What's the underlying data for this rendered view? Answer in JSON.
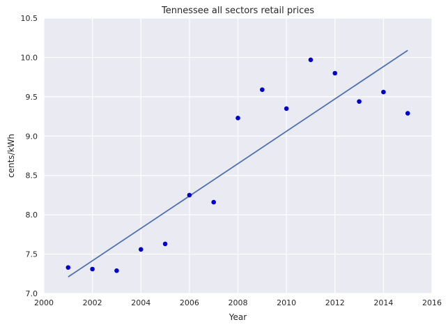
{
  "chart_data": {
    "type": "scatter",
    "title": "Tennessee   all sectors retail prices",
    "xlabel": "Year",
    "ylabel": "cents/kWh",
    "xlim": [
      2000,
      2016
    ],
    "ylim": [
      7.0,
      10.5
    ],
    "xticks": [
      2000,
      2002,
      2004,
      2006,
      2008,
      2010,
      2012,
      2014,
      2016
    ],
    "xtick_labels": [
      "2000",
      "2002",
      "2004",
      "2006",
      "2008",
      "2010",
      "2012",
      "2014",
      "2016"
    ],
    "yticks": [
      7.0,
      7.5,
      8.0,
      8.5,
      9.0,
      9.5,
      10.0,
      10.5
    ],
    "ytick_labels": [
      "7.0",
      "7.5",
      "8.0",
      "8.5",
      "9.0",
      "9.5",
      "10.0",
      "10.5"
    ],
    "grid": true,
    "series": [
      {
        "kind": "scatter",
        "color": "#0000cc",
        "x": [
          2001,
          2002,
          2003,
          2004,
          2005,
          2006,
          2007,
          2008,
          2009,
          2010,
          2011,
          2012,
          2013,
          2014,
          2015
        ],
        "y": [
          7.33,
          7.31,
          7.29,
          7.56,
          7.63,
          8.25,
          8.16,
          9.23,
          9.59,
          9.35,
          9.97,
          9.8,
          9.44,
          9.56,
          9.29
        ]
      },
      {
        "kind": "line",
        "color": "#4c72b0",
        "x": [
          2001,
          2015
        ],
        "y": [
          7.21,
          10.09
        ]
      }
    ],
    "colors": {
      "plot_background": "#eaeaf2",
      "grid": "#ffffff"
    }
  }
}
